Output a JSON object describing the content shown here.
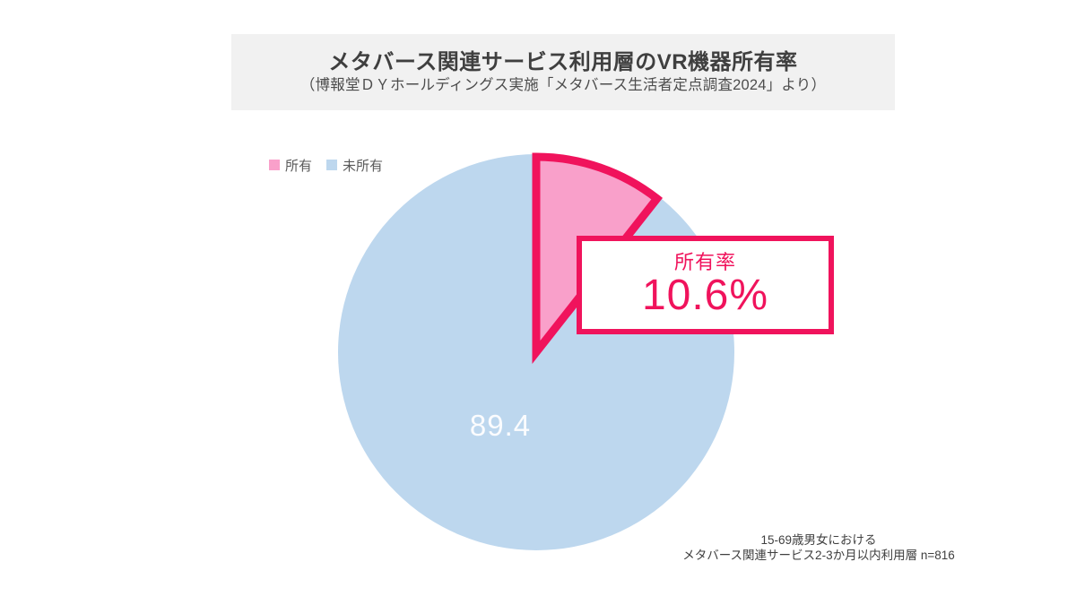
{
  "banner": {
    "title": "メタバース関連サービス利用層のVR機器所有率",
    "subtitle": "（博報堂ＤＹホールディングス実施「メタバース生活者定点調査2024」より）"
  },
  "legend": {
    "items": [
      {
        "label": "所有",
        "color": "#f9a0ca"
      },
      {
        "label": "未所有",
        "color": "#bdd7ee"
      }
    ]
  },
  "callout": {
    "title": "所有率",
    "value": "10.6%"
  },
  "pie_label": "89.4",
  "footnote": {
    "line1": "15-69歳男女における",
    "line2": "メタバース関連サービス2-3か月以内利用層 n=816"
  },
  "colors": {
    "owned_fill": "#f9a0ca",
    "owned_border": "#f0135c",
    "not_owned_fill": "#bdd7ee",
    "banner_bg": "#f1f1f1",
    "title_text": "#3f3f3f",
    "legend_text": "#595959",
    "footnote_text": "#404040",
    "pie_label_text": "#ffffff"
  },
  "chart_data": {
    "type": "pie",
    "title": "メタバース関連サービス利用層のVR機器所有率",
    "subtitle": "（博報堂ＤＹホールディングス実施「メタバース生活者定点調査2024」より）",
    "categories": [
      "所有",
      "未所有"
    ],
    "values": [
      10.6,
      89.4
    ],
    "colors": [
      "#f9a0ca",
      "#bdd7ee"
    ],
    "start_angle_deg": 0,
    "direction": "clockwise",
    "legend_position": "top-left",
    "data_labels": [
      "10.6%",
      "89.4"
    ],
    "annotation": {
      "label": "所有率",
      "value": "10.6%"
    },
    "sample_note": "15-69歳男女における メタバース関連サービス2-3か月以内利用層 n=816"
  }
}
